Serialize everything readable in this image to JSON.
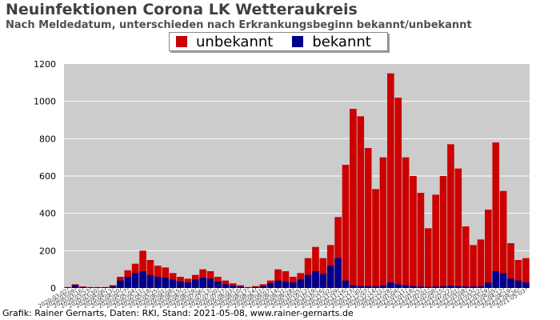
{
  "header": {
    "title": "Neuinfektionen Corona LK Wetteraukreis",
    "subtitle": "Nach Meldedatum, unterschieden nach Erkrankungsbeginn bekannt/unbekannt"
  },
  "footer": {
    "credit": "Grafik: Rainer Gernarts, Daten: RKI, Stand: 2021-05-08, www.rainer-gernarts.de"
  },
  "colors": {
    "plot_background": "#cccccc",
    "unbekannt": "#cc0000",
    "bekannt": "#00008b",
    "gridline": "#ffffff"
  },
  "chart_data": {
    "type": "bar",
    "stacked": false,
    "title": "Neuinfektionen Corona LK Wetteraukreis",
    "subtitle": "Nach Meldedatum, unterschieden nach Erkrankungsbeginn bekannt/unbekannt",
    "ylim": [
      0,
      1200
    ],
    "yticks": [
      0,
      200,
      400,
      600,
      800,
      1000,
      1200
    ],
    "grid": "horizontal",
    "legend_position": "top-center",
    "x_note": "weekly buckets from 2020-03 to 2021-05",
    "categories": [
      "2020-03-02",
      "2020-03-09",
      "2020-03-16",
      "2020-03-23",
      "2020-03-30",
      "2020-04-06",
      "2020-04-13",
      "2020-04-20",
      "2020-04-27",
      "2020-05-04",
      "2020-05-11",
      "2020-05-18",
      "2020-05-25",
      "2020-06-01",
      "2020-06-08",
      "2020-06-15",
      "2020-06-22",
      "2020-06-29",
      "2020-07-06",
      "2020-07-13",
      "2020-07-20",
      "2020-07-27",
      "2020-08-03",
      "2020-08-10",
      "2020-08-17",
      "2020-08-24",
      "2020-08-31",
      "2020-09-07",
      "2020-09-14",
      "2020-09-21",
      "2020-09-28",
      "2020-10-05",
      "2020-10-12",
      "2020-10-19",
      "2020-10-26",
      "2020-11-02",
      "2020-11-09",
      "2020-11-16",
      "2020-11-23",
      "2020-11-30",
      "2020-12-07",
      "2020-12-14",
      "2020-12-21",
      "2020-12-28",
      "2021-01-04",
      "2021-01-11",
      "2021-01-18",
      "2021-01-25",
      "2021-02-01",
      "2021-02-08",
      "2021-02-15",
      "2021-02-22",
      "2021-03-01",
      "2021-03-08",
      "2021-03-15",
      "2021-03-22",
      "2021-03-29",
      "2021-04-05",
      "2021-04-12",
      "2021-04-19",
      "2021-04-26",
      "2021-05-03"
    ],
    "series": [
      {
        "name": "unbekannt",
        "values": [
          5,
          20,
          8,
          5,
          5,
          5,
          15,
          60,
          95,
          130,
          200,
          150,
          120,
          110,
          80,
          60,
          50,
          70,
          100,
          90,
          60,
          40,
          25,
          15,
          5,
          10,
          20,
          40,
          100,
          90,
          60,
          80,
          160,
          220,
          160,
          230,
          380,
          660,
          960,
          920,
          750,
          530,
          700,
          1150,
          1020,
          700,
          600,
          510,
          320,
          500,
          600,
          770,
          640,
          330,
          230,
          260,
          420,
          780,
          520,
          240,
          150,
          160
        ]
      },
      {
        "name": "bekannt",
        "values": [
          3,
          15,
          5,
          3,
          3,
          4,
          10,
          40,
          60,
          80,
          90,
          70,
          60,
          55,
          45,
          35,
          30,
          45,
          55,
          50,
          35,
          20,
          12,
          8,
          3,
          5,
          10,
          25,
          40,
          35,
          30,
          45,
          70,
          90,
          75,
          120,
          160,
          40,
          15,
          10,
          10,
          8,
          15,
          30,
          20,
          15,
          10,
          8,
          6,
          8,
          10,
          12,
          10,
          8,
          8,
          10,
          30,
          90,
          80,
          50,
          40,
          30
        ]
      }
    ]
  },
  "legend": {
    "items": [
      {
        "label": "unbekannt"
      },
      {
        "label": "bekannt"
      }
    ]
  }
}
